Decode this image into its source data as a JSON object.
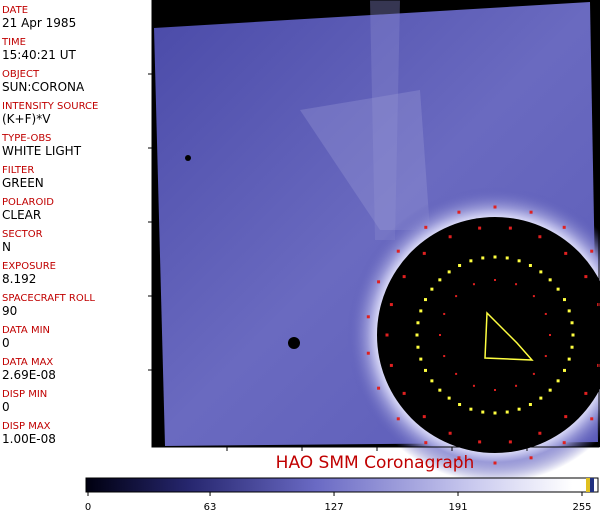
{
  "fields": [
    {
      "label": "DATE",
      "value": "21 Apr 1985"
    },
    {
      "label": "TIME",
      "value": "15:40:21 UT"
    },
    {
      "label": "OBJECT",
      "value": "SUN:CORONA"
    },
    {
      "label": "INTENSITY SOURCE",
      "value": "(K+F)*V"
    },
    {
      "label": "TYPE-OBS",
      "value": "WHITE LIGHT"
    },
    {
      "label": "FILTER",
      "value": "GREEN"
    },
    {
      "label": "POLAROID",
      "value": "CLEAR"
    },
    {
      "label": "SECTOR",
      "value": "N"
    },
    {
      "label": "EXPOSURE",
      "value": "8.192"
    },
    {
      "label": "SPACECRAFT ROLL",
      "value": "90"
    },
    {
      "label": "DATA MIN",
      "value": "0"
    },
    {
      "label": "DATA MAX",
      "value": "2.69E-08"
    },
    {
      "label": "DISP MIN",
      "value": "0"
    },
    {
      "label": "DISP MAX",
      "value": "1.00E-08"
    }
  ],
  "title": "HAO  SMM Coronagraph",
  "colorbar": {
    "lim": [
      0,
      255
    ],
    "ticks": [
      0,
      63,
      127,
      191,
      255
    ]
  }
}
